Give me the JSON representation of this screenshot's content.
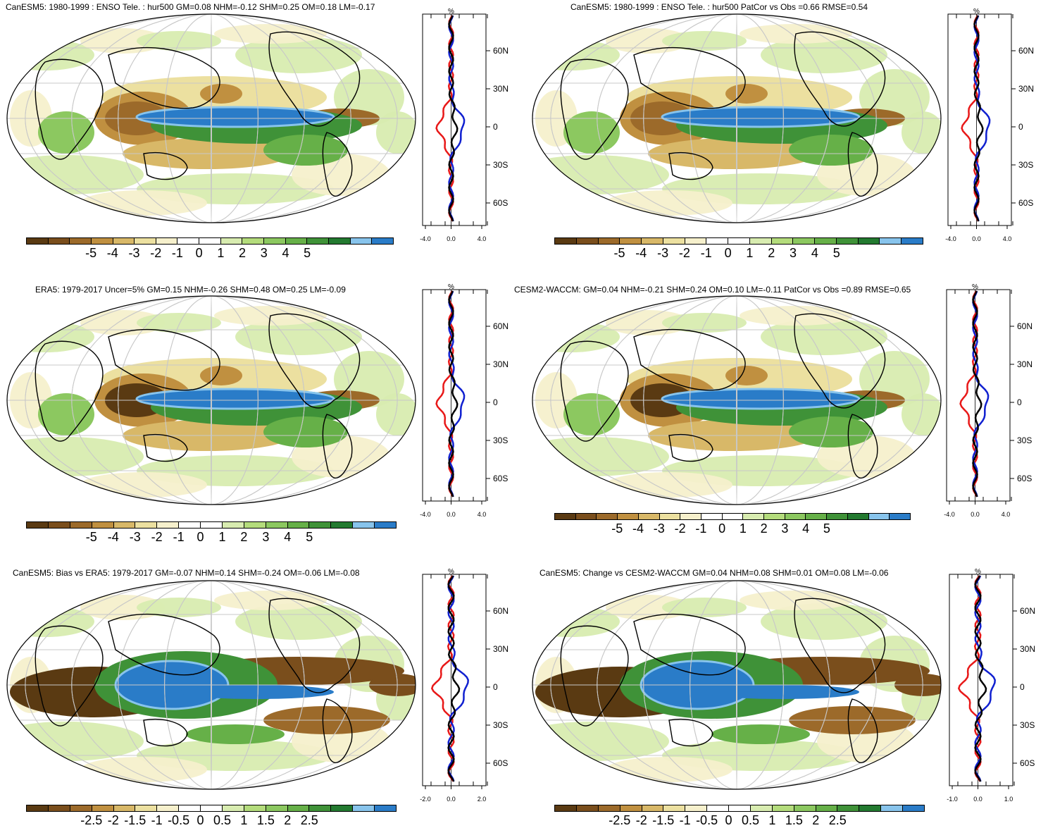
{
  "panels": [
    {
      "id": "p1",
      "title": "CanESM5: 1980-1999 : ENSO Tele. : hur500 GM=0.08 NHM=-0.12 SHM=0.25 OM=0.18 LM=-0.17",
      "colorbar_labels": [
        "-5",
        "-4",
        "-3",
        "-2",
        "-1",
        "0",
        "1",
        "2",
        "3",
        "4",
        "5"
      ],
      "profile": {
        "unit": "%",
        "x_ticks": [
          "-4.0",
          "0.0",
          "4.0"
        ],
        "y_ticks": [
          "60N",
          "30N",
          "0",
          "30S",
          "60S"
        ]
      }
    },
    {
      "id": "p2",
      "title": "CanESM5: 1980-1999 : ENSO Tele. : hur500 PatCor vs Obs =0.66 RMSE=0.54",
      "colorbar_labels": [
        "-5",
        "-4",
        "-3",
        "-2",
        "-1",
        "0",
        "1",
        "2",
        "3",
        "4",
        "5"
      ],
      "profile": {
        "unit": "%",
        "x_ticks": [
          "-4.0",
          "0.0",
          "4.0"
        ],
        "y_ticks": [
          "60N",
          "30N",
          "0",
          "30S",
          "60S"
        ]
      }
    },
    {
      "id": "p3",
      "title": "ERA5: 1979-2017 Uncer=5% GM=0.15 NHM=-0.26 SHM=0.48 OM=0.25 LM=-0.09",
      "colorbar_labels": [
        "-5",
        "-4",
        "-3",
        "-2",
        "-1",
        "0",
        "1",
        "2",
        "3",
        "4",
        "5"
      ],
      "profile": {
        "unit": "%",
        "x_ticks": [
          "-4.0",
          "0.0",
          "4.0"
        ],
        "y_ticks": [
          "60N",
          "30N",
          "0",
          "30S",
          "60S"
        ]
      }
    },
    {
      "id": "p4",
      "title": "CESM2-WACCM: GM=0.04 NHM=-0.21 SHM=0.24 OM=0.10 LM=-0.11 PatCor vs Obs =0.89 RMSE=0.65",
      "colorbar_labels": [
        "-5",
        "-4",
        "-3",
        "-2",
        "-1",
        "0",
        "1",
        "2",
        "3",
        "4",
        "5"
      ],
      "profile": {
        "unit": "%",
        "x_ticks": [
          "-4.0",
          "0.0",
          "4.0"
        ],
        "y_ticks": [
          "60N",
          "30N",
          "0",
          "30S",
          "60S"
        ]
      }
    },
    {
      "id": "p5",
      "title": "CanESM5: Bias vs ERA5: 1979-2017 GM=-0.07 NHM=0.14 SHM=-0.24 OM=-0.06 LM=-0.08",
      "colorbar_labels": [
        "-2.5",
        "-2",
        "-1.5",
        "-1",
        "-0.5",
        "0",
        "0.5",
        "1",
        "1.5",
        "2",
        "2.5"
      ],
      "profile": {
        "unit": "%",
        "x_ticks": [
          "-2.0",
          "0.0",
          "2.0"
        ],
        "y_ticks": [
          "60N",
          "30N",
          "0",
          "30S",
          "60S"
        ]
      }
    },
    {
      "id": "p6",
      "title": "CanESM5: Change vs CESM2-WACCM GM=0.04 NHM=0.08 SHM=0.01 OM=0.08 LM=-0.06",
      "colorbar_labels": [
        "-2.5",
        "-2",
        "-1.5",
        "-1",
        "-0.5",
        "0",
        "0.5",
        "1",
        "1.5",
        "2",
        "2.5"
      ],
      "profile": {
        "unit": "%",
        "x_ticks": [
          "-1.0",
          "0.0",
          "1.0"
        ],
        "y_ticks": [
          "60N",
          "30N",
          "0",
          "30S",
          "60S"
        ]
      }
    }
  ],
  "palette": [
    "#5a3a12",
    "#7a4e1c",
    "#9c6a2a",
    "#c09040",
    "#d8b868",
    "#ece0a0",
    "#f6f0cc",
    "#ffffff",
    "#ffffff",
    "#d8ecb0",
    "#b4dc7c",
    "#8cc860",
    "#66b048",
    "#3f9238",
    "#237a30",
    "#88c4ec",
    "#2a7cc8"
  ],
  "series_colors": {
    "model": "#e81818",
    "obs": "#1020d0",
    "total": "#000000"
  }
}
